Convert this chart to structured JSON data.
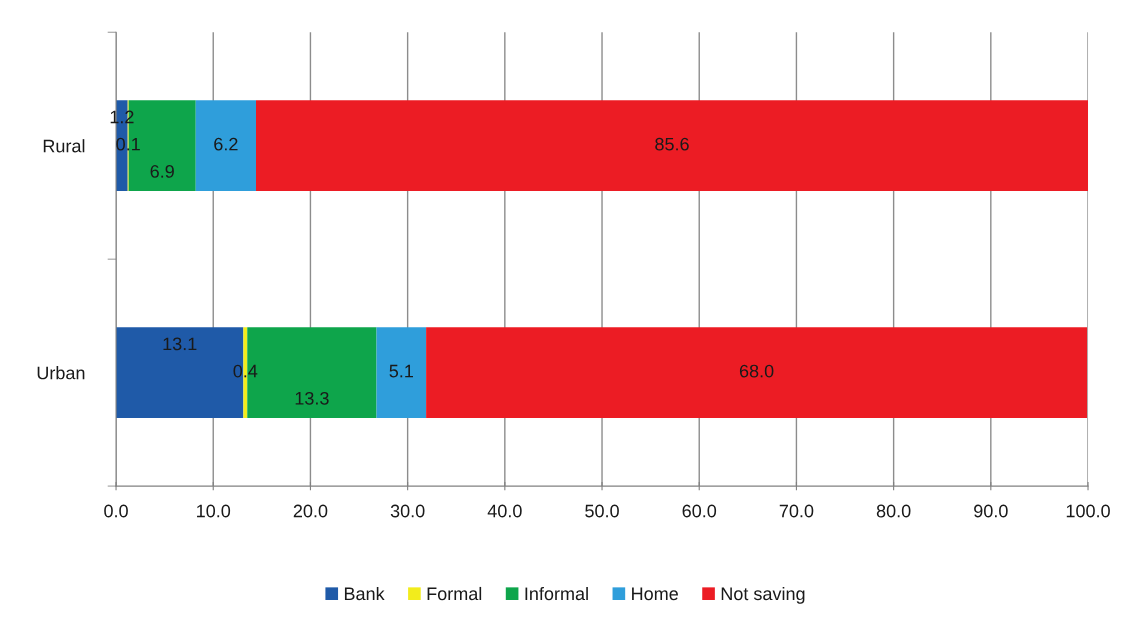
{
  "chart_data": {
    "type": "bar",
    "orientation": "horizontal",
    "stacked": true,
    "categories": [
      "Rural",
      "Urban"
    ],
    "series": [
      {
        "name": "Bank",
        "color": "#1f5aa8",
        "values": [
          1.2,
          13.1
        ],
        "value_labels": [
          "1.2",
          "13.1"
        ]
      },
      {
        "name": "Formal",
        "color": "#f2ec1c",
        "values": [
          0.1,
          0.4
        ],
        "value_labels": [
          "0.1",
          "0.4"
        ]
      },
      {
        "name": "Informal",
        "color": "#0ea54b",
        "values": [
          6.9,
          13.3
        ],
        "value_labels": [
          "6.9",
          "13.3"
        ]
      },
      {
        "name": "Home",
        "color": "#2f9edb",
        "values": [
          6.2,
          5.1
        ],
        "value_labels": [
          "6.2",
          "5.1"
        ]
      },
      {
        "name": "Not saving",
        "color": "#ec1c24",
        "values": [
          85.6,
          68.0
        ],
        "value_labels": [
          "85.6",
          "68.0"
        ]
      }
    ],
    "xlim": [
      0,
      100
    ],
    "xticks": [
      {
        "value": 0,
        "label": "0.0"
      },
      {
        "value": 10,
        "label": "10.0"
      },
      {
        "value": 20,
        "label": "20.0"
      },
      {
        "value": 30,
        "label": "30.0"
      },
      {
        "value": 40,
        "label": "40.0"
      },
      {
        "value": 50,
        "label": "50.0"
      },
      {
        "value": 60,
        "label": "60.0"
      },
      {
        "value": 70,
        "label": "70.0"
      },
      {
        "value": 80,
        "label": "80.0"
      },
      {
        "value": 90,
        "label": "90.0"
      },
      {
        "value": 100,
        "label": "100.0"
      }
    ],
    "grid": "x",
    "legend": "bottom"
  }
}
